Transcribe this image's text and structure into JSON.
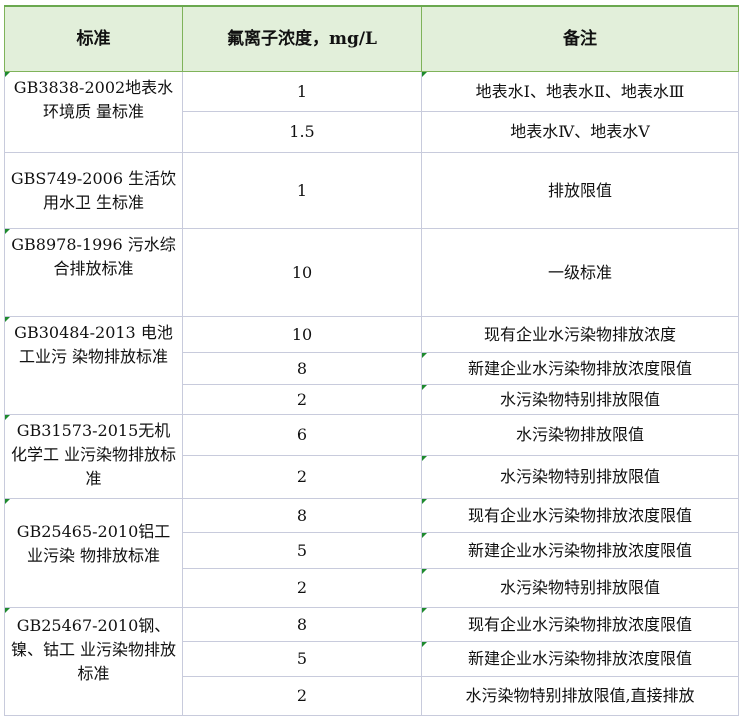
{
  "header": {
    "standard": "标准",
    "concentration": "氟离子浓度，mg/L",
    "remarks": "备注"
  },
  "colors": {
    "header_bg": "#e2efda",
    "header_border": "#6aa84f",
    "grid": "#c8cbdc",
    "comment_marker": "#1e8a2e"
  },
  "groups": [
    {
      "standard": "GB3838-2002地表水环境质 量标准",
      "rows": [
        {
          "value": "1",
          "remark": "地表水Ⅰ、地表水Ⅱ、地表水Ⅲ"
        },
        {
          "value": "1.5",
          "remark": "地表水Ⅳ、地表水Ⅴ"
        }
      ]
    },
    {
      "standard": "GBS749-2006 生活饮用水卫 生标准",
      "rows": [
        {
          "value": "1",
          "remark": "排放限值"
        }
      ]
    },
    {
      "standard": "GB8978-1996 污水综合排放标准",
      "rows": [
        {
          "value": "10",
          "remark": "一级标准"
        }
      ]
    },
    {
      "standard": "GB30484-2013 电池工业污 染物排放标准",
      "rows": [
        {
          "value": "10",
          "remark": "现有企业水污染物排放浓度"
        },
        {
          "value": "8",
          "remark": "新建企业水污染物排放浓度限值"
        },
        {
          "value": "2",
          "remark": "水污染物特别排放限值"
        }
      ]
    },
    {
      "standard": "GB31573-2015无机化学工 业污染物排放标准",
      "rows": [
        {
          "value": "6",
          "remark": "水污染物排放限值"
        },
        {
          "value": "2",
          "remark": "水污染物特别排放限值"
        }
      ]
    },
    {
      "standard": "GB25465-2010铝工业污染 物排放标准",
      "rows": [
        {
          "value": "8",
          "remark": "现有企业水污染物排放浓度限值"
        },
        {
          "value": "5",
          "remark": "新建企业水污染物排放浓度限值"
        },
        {
          "value": "2",
          "remark": "水污染物特别排放限值"
        }
      ]
    },
    {
      "standard": "GB25467-2010钢、镍、钴工 业污染物排放标准",
      "rows": [
        {
          "value": "8",
          "remark": "现有企业水污染物排放浓度限值"
        },
        {
          "value": "5",
          "remark": "新建企业水污染物排放浓度限值"
        },
        {
          "value": "2",
          "remark": "水污染物特别排放限值,直接排放"
        }
      ]
    }
  ]
}
